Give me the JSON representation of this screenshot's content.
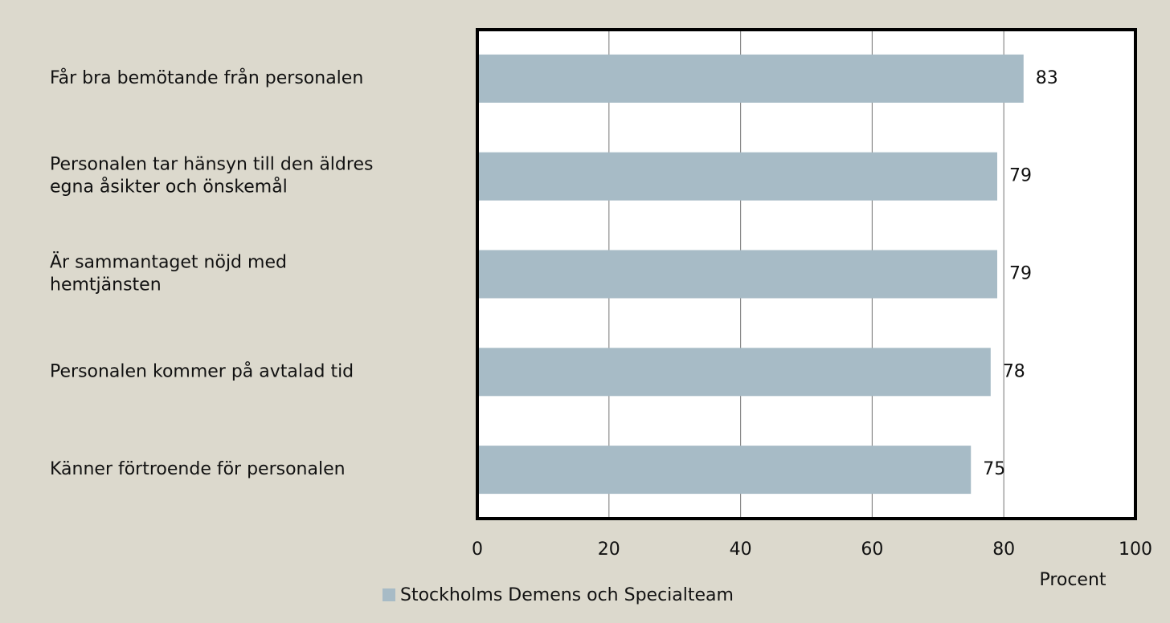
{
  "chart_data": {
    "type": "barh",
    "categories": [
      "Får bra bemötande från personalen",
      "Personalen tar hänsyn till den äldres\negna åsikter och önskemål",
      "Är sammantaget nöjd med\nhemtjänsten",
      "Personalen kommer på avtalad tid",
      "Känner förtroende för personalen"
    ],
    "series": [
      {
        "name": "Stockholms Demens och Specialteam",
        "color": "#a7bbc6",
        "values": [
          83,
          79,
          79,
          78,
          75
        ]
      }
    ],
    "xlabel": "Procent",
    "xlim": [
      0,
      100
    ],
    "xticks": [
      0,
      20,
      40,
      60,
      80,
      100
    ],
    "grid": true,
    "legend": "bottom"
  }
}
